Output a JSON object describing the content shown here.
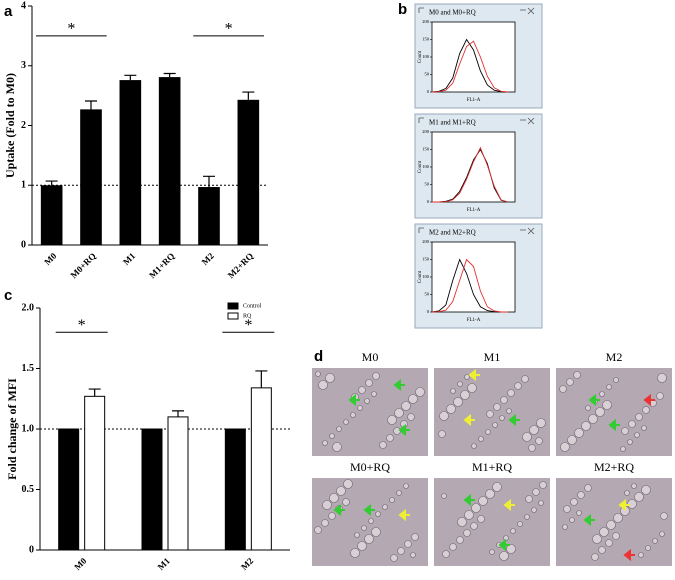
{
  "chart_data": [
    {
      "type": "bar",
      "panel": "a",
      "y_label": "Uptake (Fold to M0)",
      "categories": [
        "M0",
        "M0+RQ",
        "M1",
        "M1+RQ",
        "M2",
        "M2+RQ"
      ],
      "values": [
        1.0,
        2.27,
        2.76,
        2.81,
        0.97,
        2.43
      ],
      "errors": [
        0.07,
        0.14,
        0.08,
        0.06,
        0.18,
        0.13
      ],
      "color": "#000000",
      "ylim": [
        0,
        4
      ],
      "yticks": [
        0,
        1,
        2,
        3,
        4
      ],
      "reference_line": 1,
      "annotations": [
        {
          "text": "*",
          "between": [
            0,
            1
          ]
        },
        {
          "text": "*",
          "between": [
            4,
            5
          ]
        }
      ]
    },
    {
      "type": "line",
      "panel": "b",
      "title": "M0 and M0+RQ",
      "x_label": "FL1-A",
      "y_label": "Count",
      "x": [
        0,
        1,
        2,
        3,
        4,
        5,
        6,
        7,
        8,
        9,
        10,
        11
      ],
      "xlim": [
        0,
        12
      ],
      "ylim": [
        0,
        200
      ],
      "yticks": [
        0,
        50,
        100,
        150,
        200
      ],
      "series": [
        {
          "color": "#000000",
          "values": [
            0,
            2,
            10,
            40,
            110,
            150,
            120,
            60,
            20,
            5,
            1,
            0
          ]
        },
        {
          "color": "#e03030",
          "values": [
            0,
            1,
            5,
            25,
            80,
            130,
            145,
            100,
            45,
            12,
            2,
            0
          ]
        }
      ]
    },
    {
      "type": "line",
      "title": "M1 and M1+RQ",
      "x_label": "FL1-A",
      "y_label": "Count",
      "x": [
        0,
        1,
        2,
        3,
        4,
        5,
        6,
        7,
        8,
        9,
        10,
        11
      ],
      "xlim": [
        0,
        12
      ],
      "ylim": [
        0,
        200
      ],
      "yticks": [
        0,
        50,
        100,
        150,
        200
      ],
      "series": [
        {
          "color": "#000000",
          "values": [
            0,
            0,
            2,
            8,
            30,
            70,
            120,
            150,
            110,
            40,
            5,
            0
          ]
        },
        {
          "color": "#e03030",
          "values": [
            0,
            0,
            1,
            6,
            25,
            65,
            115,
            155,
            105,
            45,
            6,
            0
          ]
        }
      ]
    },
    {
      "type": "line",
      "title": "M2 and M2+RQ",
      "x_label": "FL1-A",
      "y_label": "Count",
      "x": [
        0,
        1,
        2,
        3,
        4,
        5,
        6,
        7,
        8,
        9,
        10,
        11
      ],
      "xlim": [
        0,
        12
      ],
      "ylim": [
        0,
        200
      ],
      "yticks": [
        0,
        50,
        100,
        150,
        200
      ],
      "series": [
        {
          "color": "#000000",
          "values": [
            0,
            3,
            20,
            90,
            150,
            110,
            50,
            15,
            4,
            1,
            0,
            0
          ]
        },
        {
          "color": "#e03030",
          "values": [
            0,
            1,
            5,
            30,
            90,
            150,
            130,
            60,
            15,
            3,
            0,
            0
          ]
        }
      ]
    },
    {
      "type": "grouped-bar",
      "panel": "c",
      "y_label": "Fold change of MFI",
      "categories": [
        "M0",
        "M1",
        "M2"
      ],
      "series": [
        {
          "name": "Control",
          "color": "#000000",
          "values": [
            1,
            1,
            1
          ]
        },
        {
          "name": "RQ",
          "color": "#ffffff",
          "values": [
            1.27,
            1.1,
            1.34
          ],
          "errors": [
            0.06,
            0.05,
            0.14
          ]
        }
      ],
      "ylim": [
        0,
        2
      ],
      "yticks": [
        0,
        0.5,
        {
          "value": 1,
          "label": "1.0"
        },
        1.5,
        {
          "value": 2,
          "label": "2.0"
        }
      ],
      "reference_line": 1,
      "legend": "upper right",
      "annotations": [
        {
          "text": "*",
          "between": [
            0,
            0
          ]
        },
        {
          "text": "*",
          "between": [
            2,
            2
          ]
        }
      ]
    }
  ],
  "micrographs": {
    "panel": "d",
    "labels": [
      "M0",
      "M1",
      "M2",
      "M0+RQ",
      "M1+RQ",
      "M2+RQ"
    ]
  }
}
